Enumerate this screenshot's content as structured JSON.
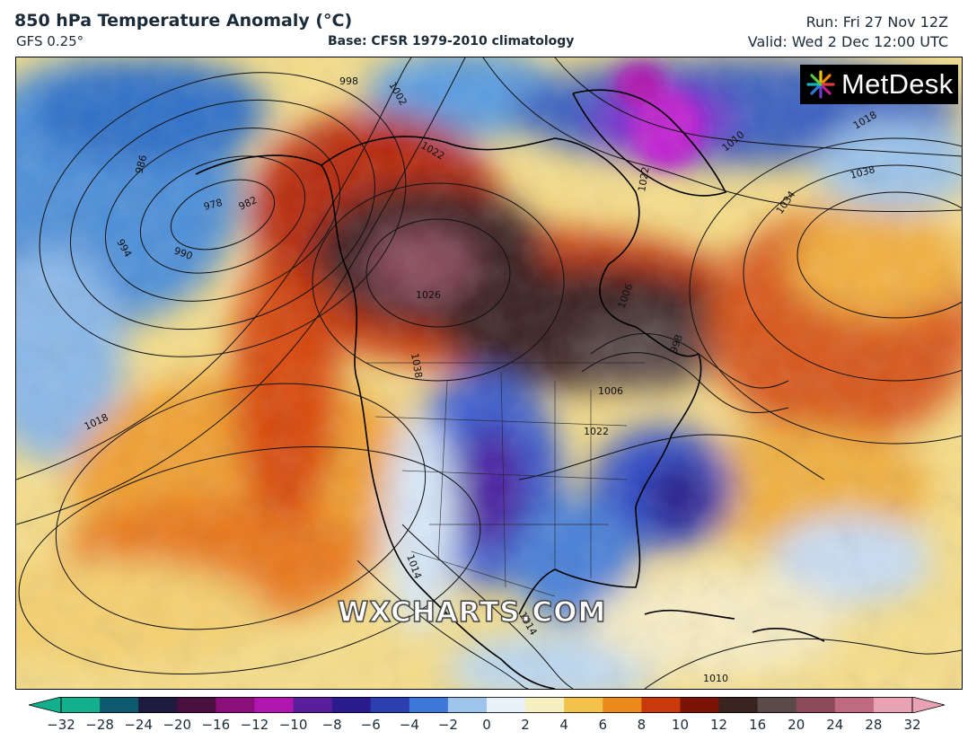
{
  "header": {
    "title": "850 hPa Temperature Anomaly (°C)",
    "model": "GFS 0.25°",
    "base": "Base: CFSR 1979-2010 climatology",
    "run": "Run: Fri 27 Nov 12Z",
    "valid": "Valid: Wed 2 Dec 12:00 UTC"
  },
  "logo": {
    "text": "MetDesk"
  },
  "watermark": "WXCHARTS.COM",
  "colorbar": {
    "ticks": [
      "−32",
      "−28",
      "−24",
      "−20",
      "−16",
      "−12",
      "−10",
      "−8",
      "−6",
      "−4",
      "−2",
      "0",
      "2",
      "4",
      "6",
      "8",
      "10",
      "12",
      "16",
      "20",
      "24",
      "28",
      "32"
    ],
    "colors": [
      "#12b08c",
      "#0c5a6e",
      "#1f1b3f",
      "#4a1040",
      "#8a0f7a",
      "#b016b0",
      "#5a1e9a",
      "#2a1a8c",
      "#2b3fb0",
      "#3f78d8",
      "#9fc4ec",
      "#e8f0fa",
      "#f6efc0",
      "#f2c24a",
      "#ea8a1a",
      "#c83a0a",
      "#7a1404",
      "#3a2420",
      "#5a4a4a",
      "#8a4a5a",
      "#c06a80",
      "#e8a2b4"
    ]
  },
  "pressure_labels": [
    "998",
    "1002",
    "986",
    "978",
    "982",
    "994",
    "990",
    "1018",
    "1026",
    "1038",
    "1034",
    "1022",
    "1010",
    "1018",
    "1014",
    "1006",
    "1022",
    "1038",
    "1014",
    "1010",
    "1022",
    "1006",
    "998"
  ]
}
